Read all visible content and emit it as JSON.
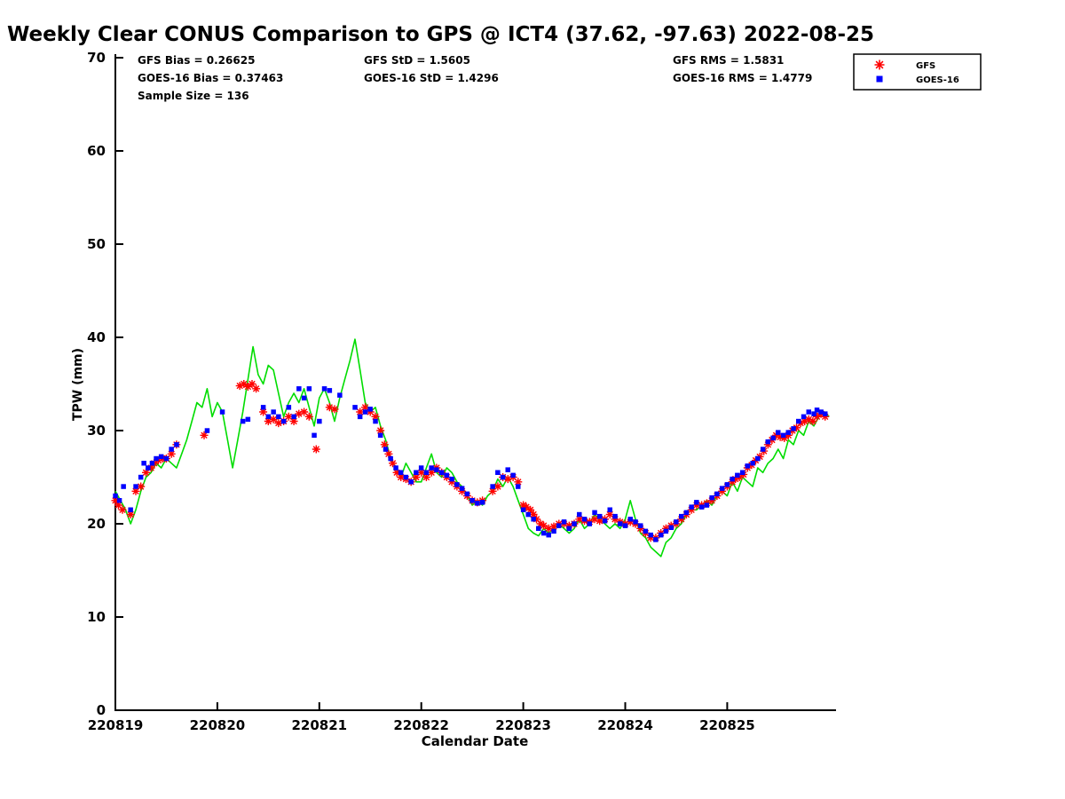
{
  "stats": {
    "col1": [
      "GFS Bias = 0.26625",
      "GOES-16 Bias = 0.37463",
      "Sample Size = 136"
    ],
    "col2": [
      "GFS StD = 1.5605",
      "GOES-16 StD = 1.4296"
    ],
    "col3": [
      "GFS RMS = 1.5831",
      "GOES-16 RMS = 1.4779"
    ]
  },
  "legend": {
    "items": [
      {
        "label": "GFS",
        "marker": "asterisk",
        "color": "#ff0000"
      },
      {
        "label": "GOES-16",
        "marker": "square",
        "color": "#0000ff"
      }
    ]
  },
  "chart_data": {
    "type": "line+scatter",
    "title": "Weekly Clear CONUS Comparison to GPS @ ICT4 (37.62, -97.63) 2022-08-25",
    "xlabel": "Calendar Date",
    "ylabel": "TPW (mm)",
    "xlim": [
      0,
      7.05
    ],
    "ylim": [
      0,
      70
    ],
    "yticks": [
      0,
      10,
      20,
      30,
      40,
      50,
      60,
      70
    ],
    "xtick_labels": [
      "220819",
      "220820",
      "220821",
      "220822",
      "220823",
      "220824",
      "220825"
    ],
    "x_unit": "days since 220819, one tick per day",
    "grid": false,
    "legend_position": "top-right",
    "series": [
      {
        "name": "GPS",
        "type": "line",
        "color": "#00dd00",
        "x_start": 0,
        "x_step": 0.05,
        "values": [
          23.5,
          22.5,
          21.5,
          20.0,
          21.5,
          23.5,
          25.0,
          25.5,
          26.5,
          26.0,
          27.0,
          26.5,
          26.0,
          27.5,
          29.0,
          31.0,
          33.0,
          32.5,
          34.5,
          31.5,
          33.0,
          32.0,
          29.0,
          26.0,
          29.0,
          32.0,
          35.5,
          39.0,
          36.0,
          35.0,
          37.0,
          36.5,
          34.0,
          31.5,
          33.0,
          34.0,
          33.0,
          34.5,
          32.5,
          30.5,
          33.5,
          34.5,
          33.0,
          31.0,
          33.5,
          35.5,
          37.5,
          39.8,
          36.5,
          33.0,
          32.0,
          32.5,
          30.5,
          29.0,
          27.0,
          26.0,
          25.0,
          26.5,
          25.5,
          24.5,
          24.5,
          26.0,
          27.5,
          25.5,
          25.0,
          26.0,
          25.5,
          24.5,
          24.0,
          23.0,
          22.0,
          22.5,
          22.0,
          23.0,
          23.5,
          24.8,
          24.0,
          25.0,
          24.0,
          22.5,
          21.0,
          19.5,
          19.0,
          18.7,
          19.5,
          19.0,
          19.5,
          20.0,
          19.5,
          19.0,
          19.5,
          20.5,
          19.5,
          20.0,
          21.0,
          20.5,
          20.0,
          19.5,
          20.0,
          19.5,
          20.5,
          22.5,
          20.5,
          19.0,
          18.5,
          17.5,
          17.0,
          16.5,
          18.0,
          18.5,
          19.5,
          20.0,
          21.0,
          21.5,
          21.5,
          22.0,
          22.5,
          22.0,
          23.0,
          23.5,
          23.0,
          24.5,
          23.5,
          25.0,
          24.5,
          24.0,
          26.0,
          25.5,
          26.5,
          27.0,
          28.0,
          27.0,
          29.0,
          28.5,
          30.0,
          29.5,
          31.0,
          30.5,
          31.5,
          32.0,
          31.5
        ]
      },
      {
        "name": "GFS",
        "type": "scatter",
        "marker": "asterisk",
        "color": "#ff0000",
        "points": [
          [
            0.0,
            22.5
          ],
          [
            0.03,
            22.0
          ],
          [
            0.07,
            21.5
          ],
          [
            0.15,
            21.0
          ],
          [
            0.2,
            23.5
          ],
          [
            0.25,
            24.0
          ],
          [
            0.3,
            25.5
          ],
          [
            0.35,
            26.0
          ],
          [
            0.38,
            26.5
          ],
          [
            0.42,
            26.8
          ],
          [
            0.46,
            27.0
          ],
          [
            0.5,
            27.0
          ],
          [
            0.55,
            27.5
          ],
          [
            0.6,
            28.5
          ],
          [
            0.87,
            29.5
          ],
          [
            1.22,
            34.8
          ],
          [
            1.26,
            35.0
          ],
          [
            1.3,
            34.7
          ],
          [
            1.34,
            35.0
          ],
          [
            1.38,
            34.5
          ],
          [
            1.45,
            32.0
          ],
          [
            1.5,
            31.0
          ],
          [
            1.55,
            31.2
          ],
          [
            1.6,
            30.8
          ],
          [
            1.65,
            31.0
          ],
          [
            1.7,
            31.5
          ],
          [
            1.75,
            31.0
          ],
          [
            1.8,
            31.8
          ],
          [
            1.85,
            32.0
          ],
          [
            1.9,
            31.5
          ],
          [
            1.97,
            28.0
          ],
          [
            2.1,
            32.5
          ],
          [
            2.15,
            32.3
          ],
          [
            2.4,
            32.0
          ],
          [
            2.45,
            32.5
          ],
          [
            2.5,
            32.0
          ],
          [
            2.55,
            31.5
          ],
          [
            2.6,
            30.0
          ],
          [
            2.64,
            28.5
          ],
          [
            2.68,
            27.5
          ],
          [
            2.72,
            26.5
          ],
          [
            2.76,
            25.5
          ],
          [
            2.8,
            25.0
          ],
          [
            2.85,
            24.8
          ],
          [
            2.9,
            24.5
          ],
          [
            2.95,
            25.0
          ],
          [
            3.0,
            25.5
          ],
          [
            3.05,
            25.0
          ],
          [
            3.1,
            25.5
          ],
          [
            3.15,
            26.0
          ],
          [
            3.2,
            25.5
          ],
          [
            3.25,
            25.0
          ],
          [
            3.3,
            24.5
          ],
          [
            3.35,
            24.0
          ],
          [
            3.4,
            23.5
          ],
          [
            3.45,
            23.0
          ],
          [
            3.5,
            22.5
          ],
          [
            3.55,
            22.3
          ],
          [
            3.6,
            22.5
          ],
          [
            3.7,
            23.5
          ],
          [
            3.75,
            24.0
          ],
          [
            3.8,
            25.0
          ],
          [
            3.85,
            24.8
          ],
          [
            3.9,
            25.0
          ],
          [
            3.95,
            24.5
          ],
          [
            4.0,
            22.0
          ],
          [
            4.03,
            21.8
          ],
          [
            4.07,
            21.5
          ],
          [
            4.1,
            21.0
          ],
          [
            4.13,
            20.5
          ],
          [
            4.17,
            20.0
          ],
          [
            4.2,
            19.8
          ],
          [
            4.25,
            19.5
          ],
          [
            4.3,
            19.7
          ],
          [
            4.35,
            20.0
          ],
          [
            4.4,
            20.0
          ],
          [
            4.45,
            19.8
          ],
          [
            4.5,
            20.0
          ],
          [
            4.55,
            20.5
          ],
          [
            4.6,
            20.3
          ],
          [
            4.65,
            20.2
          ],
          [
            4.7,
            20.5
          ],
          [
            4.75,
            20.3
          ],
          [
            4.8,
            20.5
          ],
          [
            4.85,
            21.0
          ],
          [
            4.9,
            20.5
          ],
          [
            4.95,
            20.2
          ],
          [
            5.0,
            20.0
          ],
          [
            5.05,
            20.2
          ],
          [
            5.1,
            20.0
          ],
          [
            5.15,
            19.5
          ],
          [
            5.2,
            19.0
          ],
          [
            5.25,
            18.5
          ],
          [
            5.3,
            18.5
          ],
          [
            5.35,
            19.0
          ],
          [
            5.4,
            19.5
          ],
          [
            5.45,
            19.8
          ],
          [
            5.5,
            20.0
          ],
          [
            5.55,
            20.5
          ],
          [
            5.6,
            21.0
          ],
          [
            5.65,
            21.5
          ],
          [
            5.7,
            22.0
          ],
          [
            5.75,
            22.0
          ],
          [
            5.8,
            22.2
          ],
          [
            5.85,
            22.5
          ],
          [
            5.9,
            23.0
          ],
          [
            5.95,
            23.5
          ],
          [
            6.0,
            24.0
          ],
          [
            6.05,
            24.5
          ],
          [
            6.08,
            24.8
          ],
          [
            6.12,
            25.0
          ],
          [
            6.16,
            25.3
          ],
          [
            6.2,
            26.0
          ],
          [
            6.24,
            26.3
          ],
          [
            6.28,
            26.8
          ],
          [
            6.32,
            27.2
          ],
          [
            6.36,
            27.8
          ],
          [
            6.4,
            28.5
          ],
          [
            6.44,
            29.0
          ],
          [
            6.48,
            29.5
          ],
          [
            6.52,
            29.3
          ],
          [
            6.56,
            29.2
          ],
          [
            6.6,
            29.5
          ],
          [
            6.64,
            30.0
          ],
          [
            6.68,
            30.3
          ],
          [
            6.72,
            30.8
          ],
          [
            6.76,
            31.0
          ],
          [
            6.8,
            31.2
          ],
          [
            6.84,
            31.0
          ],
          [
            6.88,
            31.5
          ],
          [
            6.92,
            31.8
          ],
          [
            6.96,
            31.5
          ]
        ]
      },
      {
        "name": "GOES-16",
        "type": "scatter",
        "marker": "square",
        "color": "#0000ff",
        "points": [
          [
            0.0,
            23.0
          ],
          [
            0.04,
            22.5
          ],
          [
            0.08,
            24.0
          ],
          [
            0.15,
            21.5
          ],
          [
            0.2,
            24.0
          ],
          [
            0.25,
            25.0
          ],
          [
            0.28,
            26.5
          ],
          [
            0.32,
            26.0
          ],
          [
            0.36,
            26.5
          ],
          [
            0.4,
            27.0
          ],
          [
            0.45,
            27.2
          ],
          [
            0.5,
            27.0
          ],
          [
            0.55,
            28.0
          ],
          [
            0.6,
            28.5
          ],
          [
            0.9,
            30.0
          ],
          [
            1.05,
            32.0
          ],
          [
            1.25,
            31.0
          ],
          [
            1.3,
            31.2
          ],
          [
            1.45,
            32.5
          ],
          [
            1.5,
            31.5
          ],
          [
            1.55,
            32.0
          ],
          [
            1.6,
            31.5
          ],
          [
            1.65,
            31.0
          ],
          [
            1.7,
            32.5
          ],
          [
            1.75,
            31.5
          ],
          [
            1.8,
            34.5
          ],
          [
            1.85,
            33.5
          ],
          [
            1.9,
            34.5
          ],
          [
            1.95,
            29.5
          ],
          [
            2.0,
            31.0
          ],
          [
            2.05,
            34.5
          ],
          [
            2.1,
            34.3
          ],
          [
            2.2,
            33.8
          ],
          [
            2.35,
            32.5
          ],
          [
            2.4,
            31.5
          ],
          [
            2.45,
            32.0
          ],
          [
            2.5,
            32.3
          ],
          [
            2.55,
            31.0
          ],
          [
            2.6,
            29.5
          ],
          [
            2.65,
            28.0
          ],
          [
            2.7,
            27.0
          ],
          [
            2.75,
            26.0
          ],
          [
            2.8,
            25.5
          ],
          [
            2.85,
            25.0
          ],
          [
            2.9,
            24.5
          ],
          [
            2.95,
            25.5
          ],
          [
            3.0,
            26.0
          ],
          [
            3.05,
            25.5
          ],
          [
            3.1,
            26.0
          ],
          [
            3.15,
            25.8
          ],
          [
            3.2,
            25.5
          ],
          [
            3.25,
            25.2
          ],
          [
            3.3,
            24.8
          ],
          [
            3.35,
            24.2
          ],
          [
            3.4,
            23.8
          ],
          [
            3.45,
            23.2
          ],
          [
            3.5,
            22.5
          ],
          [
            3.55,
            22.2
          ],
          [
            3.6,
            22.3
          ],
          [
            3.7,
            24.0
          ],
          [
            3.75,
            25.5
          ],
          [
            3.8,
            25.0
          ],
          [
            3.85,
            25.8
          ],
          [
            3.9,
            25.2
          ],
          [
            3.95,
            24.0
          ],
          [
            4.0,
            21.5
          ],
          [
            4.05,
            21.0
          ],
          [
            4.1,
            20.5
          ],
          [
            4.15,
            19.5
          ],
          [
            4.2,
            19.0
          ],
          [
            4.25,
            18.8
          ],
          [
            4.3,
            19.2
          ],
          [
            4.35,
            19.8
          ],
          [
            4.4,
            20.2
          ],
          [
            4.45,
            19.5
          ],
          [
            4.5,
            20.0
          ],
          [
            4.55,
            21.0
          ],
          [
            4.6,
            20.5
          ],
          [
            4.65,
            20.0
          ],
          [
            4.7,
            21.2
          ],
          [
            4.75,
            20.8
          ],
          [
            4.8,
            20.3
          ],
          [
            4.85,
            21.5
          ],
          [
            4.9,
            20.8
          ],
          [
            4.95,
            20.0
          ],
          [
            5.0,
            19.8
          ],
          [
            5.05,
            20.5
          ],
          [
            5.1,
            20.2
          ],
          [
            5.15,
            19.8
          ],
          [
            5.2,
            19.2
          ],
          [
            5.25,
            18.8
          ],
          [
            5.3,
            18.3
          ],
          [
            5.35,
            18.8
          ],
          [
            5.4,
            19.2
          ],
          [
            5.45,
            19.6
          ],
          [
            5.5,
            20.2
          ],
          [
            5.55,
            20.8
          ],
          [
            5.6,
            21.2
          ],
          [
            5.65,
            21.8
          ],
          [
            5.7,
            22.3
          ],
          [
            5.75,
            21.8
          ],
          [
            5.8,
            22.0
          ],
          [
            5.85,
            22.8
          ],
          [
            5.9,
            23.2
          ],
          [
            5.95,
            23.8
          ],
          [
            6.0,
            24.2
          ],
          [
            6.05,
            24.8
          ],
          [
            6.1,
            25.2
          ],
          [
            6.15,
            25.5
          ],
          [
            6.2,
            26.2
          ],
          [
            6.25,
            26.5
          ],
          [
            6.3,
            27.0
          ],
          [
            6.35,
            28.0
          ],
          [
            6.4,
            28.8
          ],
          [
            6.45,
            29.2
          ],
          [
            6.5,
            29.8
          ],
          [
            6.55,
            29.5
          ],
          [
            6.6,
            29.8
          ],
          [
            6.65,
            30.2
          ],
          [
            6.7,
            31.0
          ],
          [
            6.75,
            31.5
          ],
          [
            6.8,
            32.0
          ],
          [
            6.85,
            31.8
          ],
          [
            6.88,
            32.2
          ],
          [
            6.92,
            32.0
          ],
          [
            6.96,
            31.8
          ]
        ]
      }
    ]
  }
}
